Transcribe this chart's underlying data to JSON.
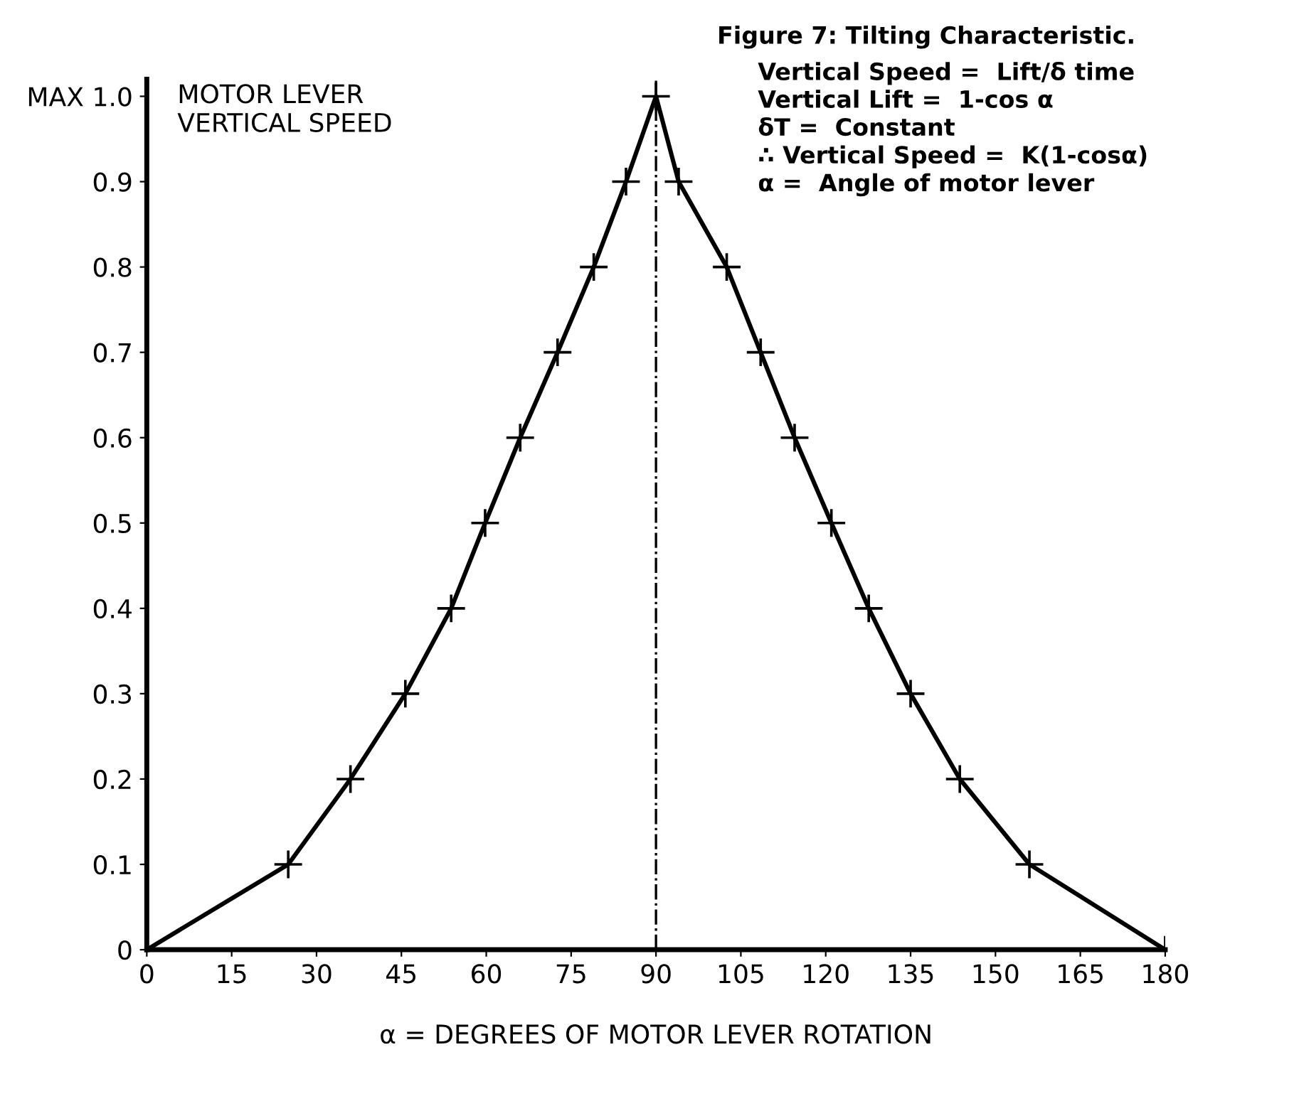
{
  "chart_data": {
    "type": "line",
    "title": "Figure 7: Tilting Characteristic.",
    "annotations": [
      "Vertical Speed =  Lift/δ time",
      "Vertical Lift =  1-cos α",
      "δT =  Constant",
      "∴ Vertical Speed =  K(1-cosα)",
      "α =  Angle of motor lever"
    ],
    "xlabel": "α = DEGREES OF MOTOR LEVER ROTATION",
    "ylabel": "MOTOR LEVER\nVERTICAL SPEED",
    "series": [
      {
        "color": "#000000",
        "x": [
          0,
          25,
          36,
          45.7,
          53.8,
          59.8,
          66,
          72.6,
          79,
          84.7,
          90,
          94,
          102.5,
          108.5,
          114.5,
          121,
          127.6,
          135,
          143.7,
          156,
          180
        ],
        "values": [
          0,
          0.1,
          0.2,
          0.3,
          0.4,
          0.5,
          0.6,
          0.7,
          0.8,
          0.9,
          1.0,
          0.9,
          0.8,
          0.7,
          0.6,
          0.5,
          0.4,
          0.3,
          0.2,
          0.1,
          0
        ]
      }
    ],
    "marker": "cross",
    "line_style": "solid",
    "grid": false,
    "legend": false,
    "xlim": [
      0,
      180
    ],
    "xticks": [
      0,
      15,
      30,
      45,
      60,
      75,
      90,
      105,
      120,
      135,
      150,
      165,
      180
    ],
    "ylim": [
      0,
      1.02
    ],
    "yticks": [
      0,
      0.1,
      0.2,
      0.3,
      0.4,
      0.5,
      0.6,
      0.7,
      0.8,
      0.9,
      {
        "value": 1.0,
        "label": "MAX 1.0"
      }
    ],
    "ref_lines": [
      {
        "axis": "x",
        "value": 90,
        "line_style": "dashed",
        "color": "#000000"
      }
    ]
  }
}
